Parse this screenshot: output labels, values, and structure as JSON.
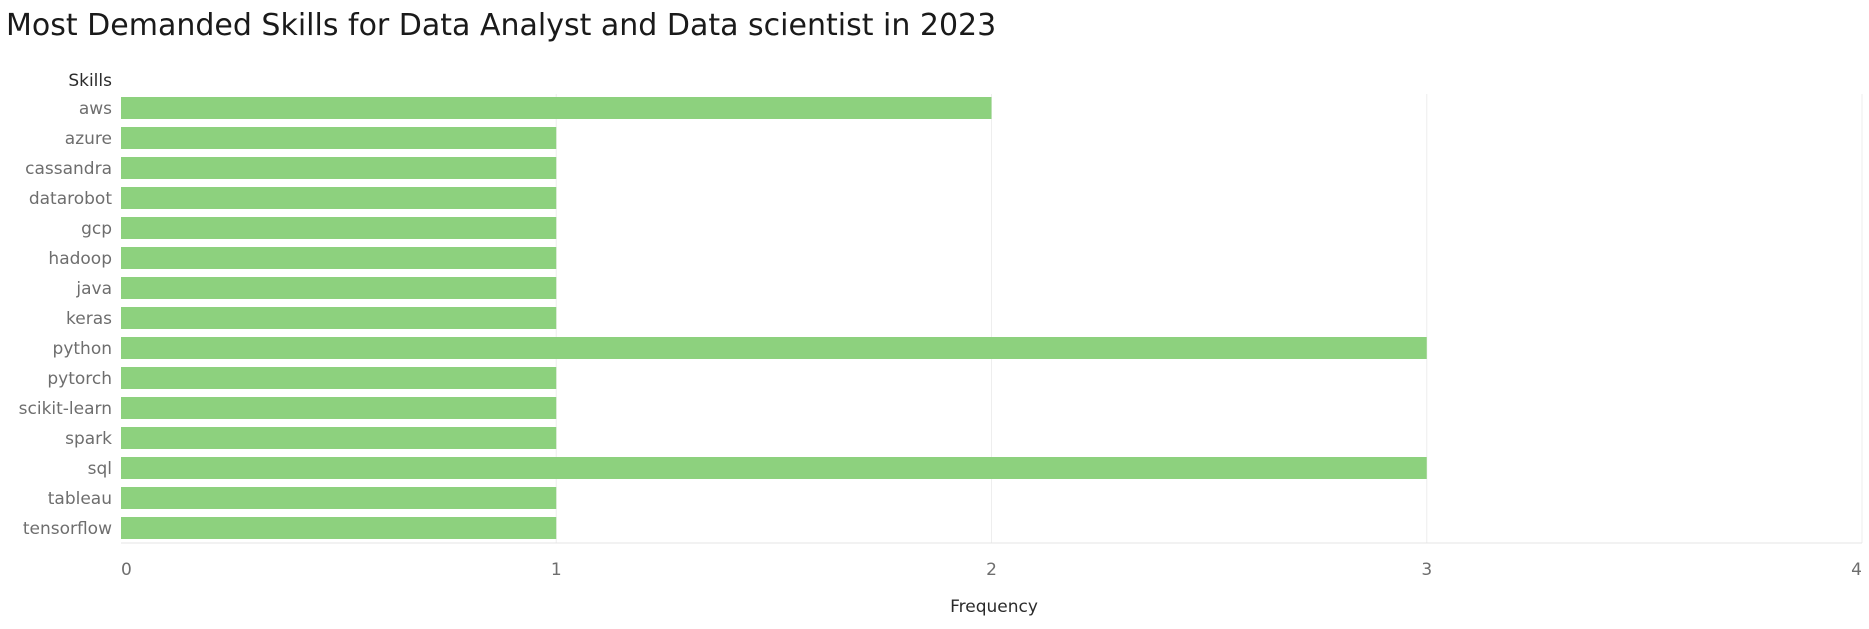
{
  "chart_data": {
    "type": "bar",
    "orientation": "horizontal",
    "title": "Most Demanded Skills for Data Analyst and Data scientist in 2023",
    "category_axis_label": "Skills",
    "xlabel": "Frequency",
    "categories": [
      "aws",
      "azure",
      "cassandra",
      "datarobot",
      "gcp",
      "hadoop",
      "java",
      "keras",
      "python",
      "pytorch",
      "scikit-learn",
      "spark",
      "sql",
      "tableau",
      "tensorflow"
    ],
    "values": [
      2,
      1,
      1,
      1,
      1,
      1,
      1,
      1,
      3,
      1,
      1,
      1,
      3,
      1,
      1
    ],
    "xlim": [
      0,
      4
    ],
    "xticks": [
      0,
      1,
      2,
      3,
      4
    ],
    "grid": true,
    "bar_color": "#8dd17e"
  }
}
